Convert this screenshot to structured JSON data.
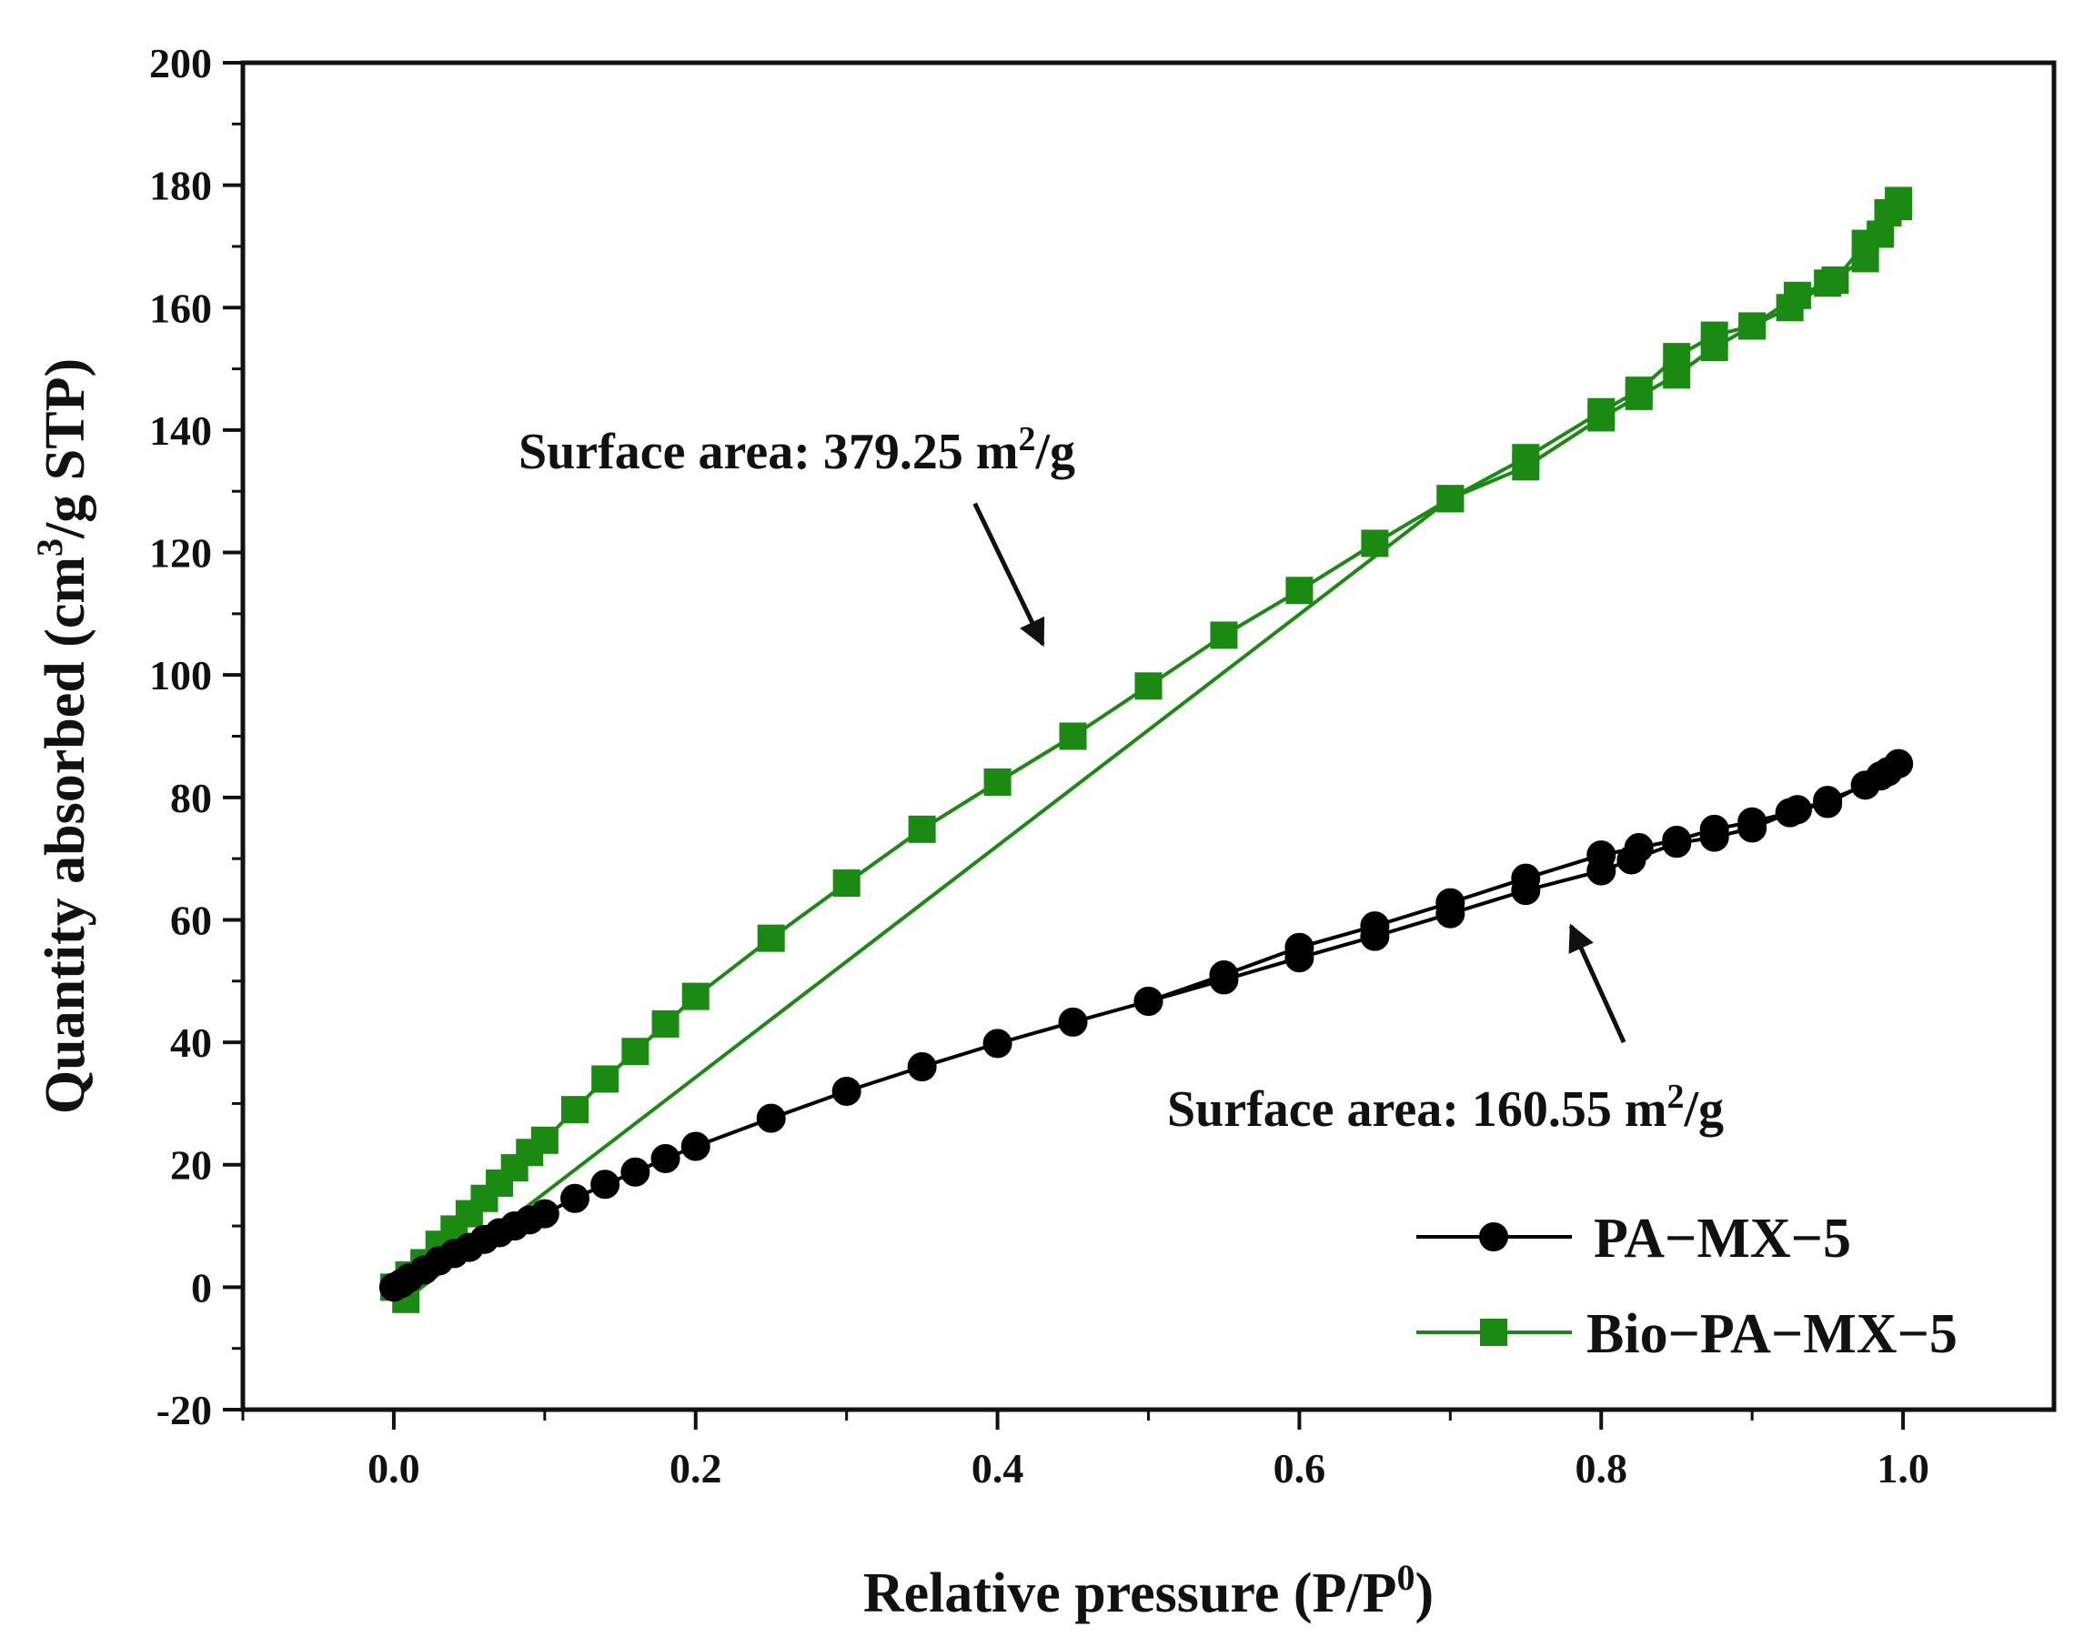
{
  "chart_data": {
    "type": "line",
    "title": "",
    "xlabel_main": "Relative pressure (P/P",
    "xlabel_sup": "0",
    "xlabel_tail": ")",
    "ylabel_main": "Quantity absorbed (cm",
    "ylabel_sup": "3",
    "ylabel_tail": "/g STP)",
    "xlim": [
      -0.1,
      1.1
    ],
    "ylim": [
      -20,
      200
    ],
    "xticks": [
      0.0,
      0.2,
      0.4,
      0.6,
      0.8,
      1.0
    ],
    "xtick_labels": [
      "0.0",
      "0.2",
      "0.4",
      "0.6",
      "0.8",
      "1.0"
    ],
    "yticks": [
      -20,
      0,
      20,
      40,
      60,
      80,
      100,
      120,
      140,
      160,
      180,
      200
    ],
    "ytick_labels": [
      "-20",
      "0",
      "20",
      "40",
      "60",
      "80",
      "100",
      "120",
      "140",
      "160",
      "180",
      "200"
    ],
    "legend_position": "bottom-right",
    "series": [
      {
        "name": "PA−MX−5",
        "color": "#000000",
        "marker": "circle",
        "adsorption": {
          "x": [
            0.0,
            0.005,
            0.01,
            0.02,
            0.03,
            0.04,
            0.05,
            0.06,
            0.07,
            0.08,
            0.09,
            0.1,
            0.12,
            0.14,
            0.16,
            0.18,
            0.2,
            0.25,
            0.3,
            0.35,
            0.4,
            0.45,
            0.5,
            0.55,
            0.6,
            0.65,
            0.7,
            0.75,
            0.8,
            0.825,
            0.85,
            0.875,
            0.9,
            0.925,
            0.95,
            0.975,
            0.99,
            0.997
          ],
          "y": [
            0.0,
            0.6,
            1.5,
            2.8,
            4.3,
            5.5,
            6.5,
            7.8,
            8.9,
            10.0,
            11.0,
            12.0,
            14.5,
            16.8,
            18.8,
            21.0,
            23.0,
            27.6,
            32.0,
            36.0,
            39.8,
            43.3,
            46.7,
            51.0,
            55.5,
            59.0,
            62.8,
            66.8,
            70.6,
            71.8,
            73.0,
            74.8,
            76.0,
            77.5,
            79.5,
            82.0,
            84.2,
            85.5
          ]
        },
        "desorption": {
          "x": [
            0.997,
            0.985,
            0.95,
            0.93,
            0.9,
            0.875,
            0.85,
            0.82,
            0.8,
            0.75,
            0.7,
            0.65,
            0.6,
            0.55,
            0.5
          ],
          "y": [
            85.5,
            83.5,
            79.0,
            78.0,
            75.0,
            73.5,
            72.5,
            69.8,
            68.0,
            64.8,
            61.0,
            57.3,
            53.8,
            50.2,
            46.7
          ]
        }
      },
      {
        "name": "Bio−PA−MX−5",
        "color": "#1a8a12",
        "marker": "square",
        "adsorption": {
          "x": [
            0.0,
            0.01,
            0.02,
            0.03,
            0.04,
            0.05,
            0.06,
            0.07,
            0.08,
            0.09,
            0.1,
            0.12,
            0.14,
            0.16,
            0.18,
            0.2,
            0.25,
            0.3,
            0.35,
            0.4,
            0.45,
            0.5,
            0.55,
            0.6,
            0.65,
            0.7,
            0.75,
            0.8,
            0.825,
            0.85,
            0.875,
            0.9,
            0.925,
            0.95,
            0.975,
            0.99,
            0.997
          ],
          "y": [
            0.0,
            2.0,
            4.0,
            7.0,
            9.5,
            12.0,
            14.5,
            17.0,
            19.5,
            22.0,
            24.0,
            29.0,
            34.0,
            38.5,
            43.0,
            47.5,
            57.0,
            66.0,
            74.8,
            82.5,
            90.0,
            98.2,
            106.5,
            113.8,
            121.5,
            128.8,
            135.5,
            143.0,
            146.5,
            152.0,
            155.5,
            157.0,
            160.0,
            164.0,
            168.0,
            175.5,
            177.5
          ]
        },
        "desorption": {
          "x": [
            0.997,
            0.985,
            0.975,
            0.955,
            0.93,
            0.9,
            0.875,
            0.85,
            0.825,
            0.8,
            0.75,
            0.7,
            0.008
          ],
          "y": [
            176.5,
            172.0,
            170.5,
            164.5,
            162.0,
            157.0,
            153.5,
            149.0,
            145.5,
            142.0,
            134.0,
            128.8,
            -2.0
          ]
        }
      }
    ],
    "annotations": [
      {
        "text_main": "Surface area: 379.25 m",
        "text_sup": "2",
        "text_tail": "/g",
        "arrow_from": [
          0.385,
          128
        ],
        "arrow_to": [
          0.43,
          105
        ]
      },
      {
        "text_main": "Surface area: 160.55 m",
        "text_sup": "2",
        "text_tail": "/g",
        "arrow_from": [
          0.815,
          40
        ],
        "arrow_to": [
          0.78,
          59
        ]
      }
    ]
  }
}
